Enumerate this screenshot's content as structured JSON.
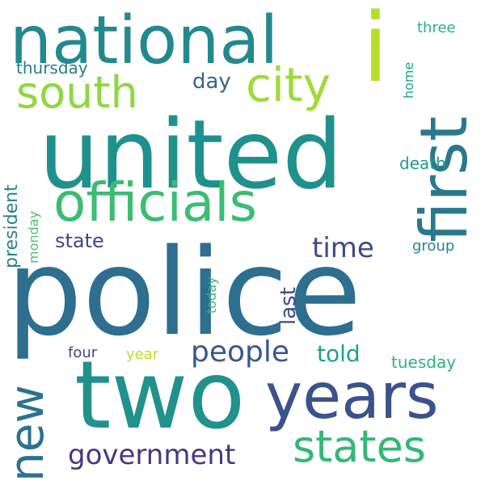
{
  "words": [
    {
      "text": "police",
      "color": "#2e6e8e",
      "rotate": false
    },
    {
      "text": "united",
      "color": "#1f918d",
      "rotate": false
    },
    {
      "text": "two",
      "color": "#21918c",
      "rotate": false
    },
    {
      "text": "national",
      "color": "#23898e",
      "rotate": false
    },
    {
      "text": "years",
      "color": "#3b528b",
      "rotate": false
    },
    {
      "text": "officials",
      "color": "#3dbc74",
      "rotate": false
    },
    {
      "text": "first",
      "color": "#2a788e",
      "rotate": true
    },
    {
      "text": "states",
      "color": "#35b779",
      "rotate": false
    },
    {
      "text": "new",
      "color": "#2c728e",
      "rotate": true
    },
    {
      "text": "i",
      "color": "#b5de2b",
      "rotate": false
    },
    {
      "text": "city",
      "color": "#a0da39",
      "rotate": false
    },
    {
      "text": "south",
      "color": "#8fd744",
      "rotate": false
    },
    {
      "text": "people",
      "color": "#38598c",
      "rotate": false
    },
    {
      "text": "government",
      "color": "#443983",
      "rotate": false
    },
    {
      "text": "time",
      "color": "#3e4989",
      "rotate": false
    },
    {
      "text": "told",
      "color": "#1fa088",
      "rotate": false
    },
    {
      "text": "president",
      "color": "#26828e",
      "rotate": true
    },
    {
      "text": "state",
      "color": "#404688",
      "rotate": false
    },
    {
      "text": "day",
      "color": "#31668e",
      "rotate": false
    },
    {
      "text": "last",
      "color": "#3e4a89",
      "rotate": true
    },
    {
      "text": "thursday",
      "color": "#287c8e",
      "rotate": false
    },
    {
      "text": "tuesday",
      "color": "#2db27d",
      "rotate": false
    },
    {
      "text": "death",
      "color": "#1e9b8a",
      "rotate": false
    },
    {
      "text": "group",
      "color": "#24868e",
      "rotate": false
    },
    {
      "text": "four",
      "color": "#3f4788",
      "rotate": false
    },
    {
      "text": "year",
      "color": "#b8de29",
      "rotate": false
    },
    {
      "text": "monday",
      "color": "#4ac16d",
      "rotate": true
    },
    {
      "text": "today",
      "color": "#35b779",
      "rotate": true
    },
    {
      "text": "three",
      "color": "#2ab07f",
      "rotate": false
    },
    {
      "text": "home",
      "color": "#20a386",
      "rotate": true
    }
  ]
}
